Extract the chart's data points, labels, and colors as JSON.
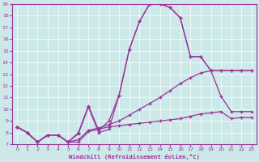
{
  "xlabel": "Windchill (Refroidissement éolien,°C)",
  "background_color": "#cce8e8",
  "line_color": "#993399",
  "xlim": [
    -0.5,
    23.5
  ],
  "ylim": [
    7,
    19
  ],
  "yticks": [
    7,
    8,
    9,
    10,
    11,
    12,
    13,
    14,
    15,
    16,
    17,
    18,
    19
  ],
  "xticks": [
    0,
    1,
    2,
    3,
    4,
    5,
    6,
    7,
    8,
    9,
    10,
    11,
    12,
    13,
    14,
    15,
    16,
    17,
    18,
    19,
    20,
    21,
    22,
    23
  ],
  "line1_x": [
    0,
    1,
    2,
    3,
    4,
    5,
    6,
    7,
    8,
    9,
    10,
    11,
    12,
    13,
    14,
    15,
    16,
    17,
    18,
    19,
    20,
    21,
    22,
    23
  ],
  "line1_y": [
    8.5,
    8.0,
    7.2,
    7.8,
    7.8,
    7.2,
    7.2,
    8.1,
    8.3,
    8.5,
    8.6,
    8.7,
    8.8,
    8.9,
    9.0,
    9.1,
    9.2,
    9.4,
    9.6,
    9.7,
    9.8,
    9.2,
    9.3,
    9.3
  ],
  "line2_x": [
    0,
    1,
    2,
    3,
    4,
    5,
    6,
    7,
    8,
    9,
    10,
    11,
    12,
    13,
    14,
    15,
    16,
    17,
    18,
    19,
    20,
    21,
    22,
    23
  ],
  "line2_y": [
    8.5,
    8.0,
    7.2,
    7.8,
    7.8,
    7.2,
    7.4,
    8.2,
    8.4,
    8.7,
    9.0,
    9.5,
    10.0,
    10.5,
    11.0,
    11.6,
    12.2,
    12.7,
    13.1,
    13.3,
    11.1,
    9.8,
    9.8,
    9.8
  ],
  "line3_x": [
    0,
    1,
    2,
    3,
    4,
    5,
    6,
    7,
    8,
    9,
    10,
    11,
    12,
    13,
    14,
    15,
    16,
    17,
    18,
    19,
    20,
    21,
    22,
    23
  ],
  "line3_y": [
    8.5,
    8.0,
    7.2,
    7.8,
    7.8,
    7.2,
    7.9,
    10.2,
    8.0,
    8.3,
    11.2,
    15.1,
    17.5,
    19.0,
    19.0,
    18.7,
    17.8,
    14.5,
    14.5,
    13.3,
    13.3,
    13.3,
    13.3,
    13.3
  ],
  "line4_x": [
    0,
    1,
    2,
    3,
    4,
    5,
    6,
    7,
    8,
    9,
    10,
    11,
    12,
    13,
    14,
    15,
    16,
    17,
    18,
    19,
    20,
    21,
    22,
    23
  ],
  "line4_y": [
    8.5,
    8.0,
    7.2,
    7.8,
    7.8,
    7.2,
    8.0,
    10.3,
    8.2,
    9.0,
    11.2,
    15.1,
    17.5,
    19.0,
    19.0,
    18.7,
    17.8,
    14.5,
    14.5,
    13.3,
    13.3,
    13.3,
    13.3,
    13.3
  ]
}
